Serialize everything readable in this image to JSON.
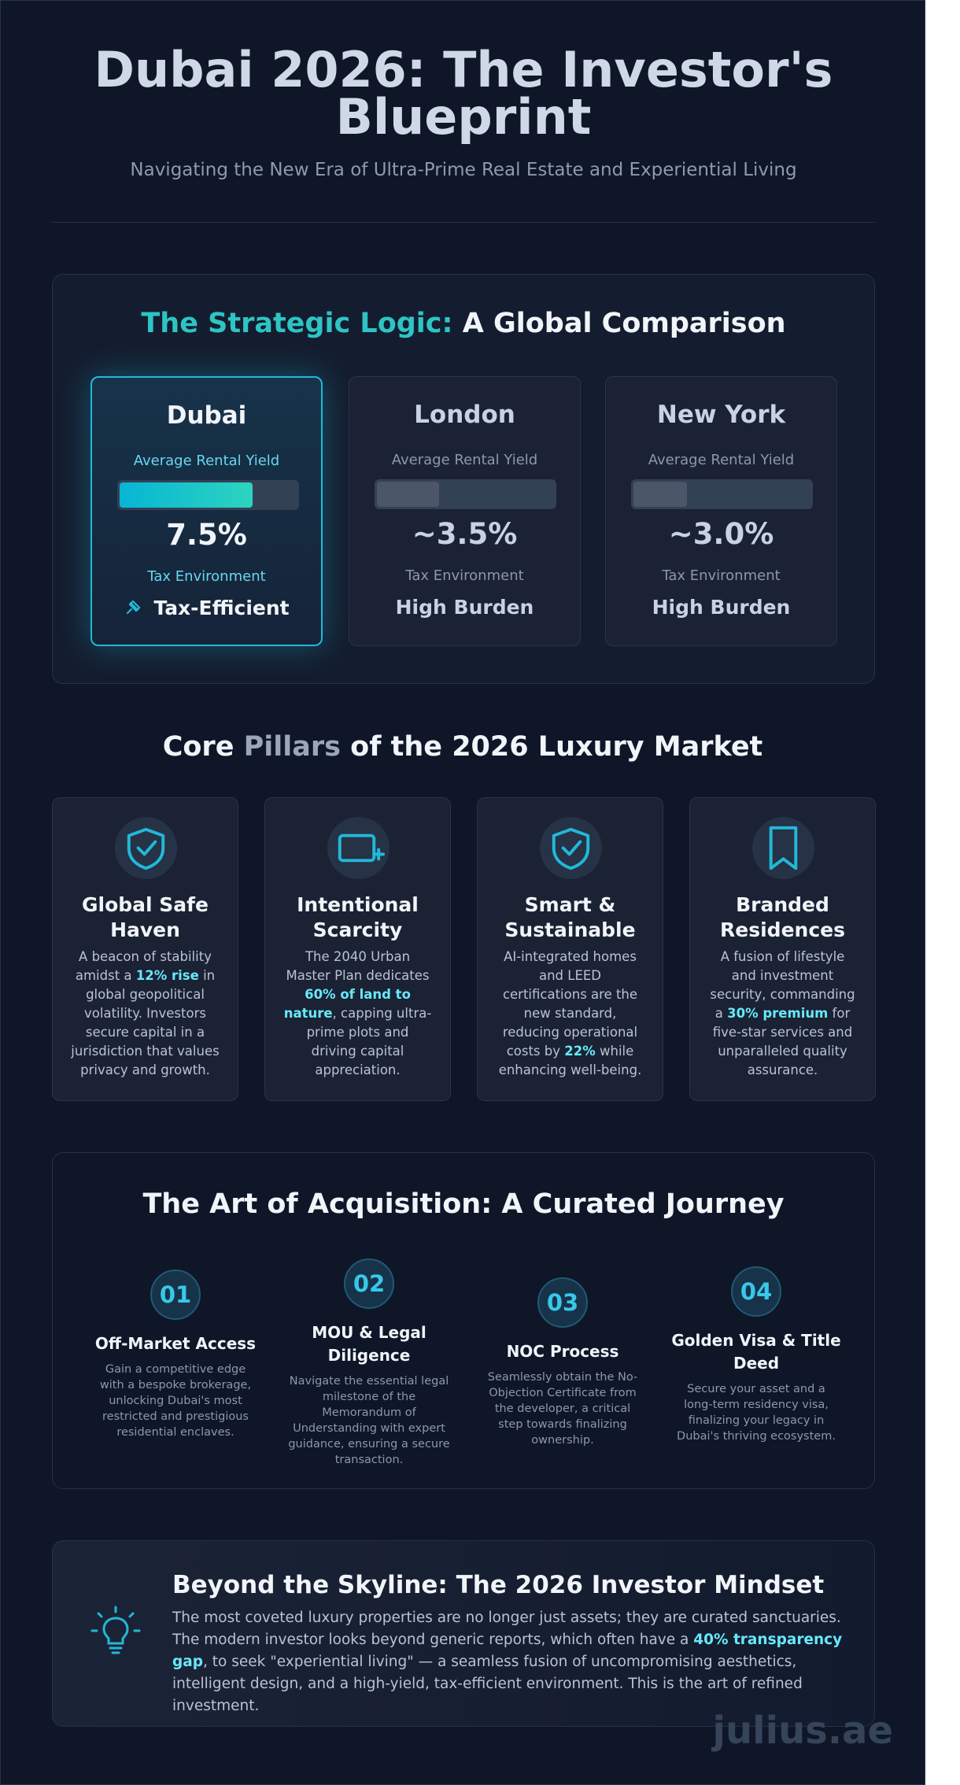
{
  "header": {
    "title": "Dubai 2026: The Investor's Blueprint",
    "subtitle": "Navigating the New Era of Ultra-Prime Real Estate and Experiential Living"
  },
  "comparison": {
    "title_highlight": "The Strategic Logic:",
    "title_rest": "A Global Comparison",
    "yield_scale_max": 10,
    "cities": [
      {
        "name": "Dubai",
        "yield_title": "Average Rental Yield",
        "yield": 7.5,
        "yield_label": "7.5%",
        "tax_title": "Tax Environment",
        "tax": "Tax-Efficient"
      },
      {
        "name": "London",
        "yield_title": "Average Rental Yield",
        "yield": 3.5,
        "yield_label": "~3.5%",
        "tax_title": "Tax Environment",
        "tax": "High Burden"
      },
      {
        "name": "New York",
        "yield_title": "Average Rental Yield",
        "yield": 3.0,
        "yield_label": "~3.0%",
        "tax_title": "Tax Environment",
        "tax": "High Burden"
      }
    ]
  },
  "pillars": {
    "title_before": "Core",
    "title_highlight": "Pillars",
    "title_after": "of the 2026 Luxury Market",
    "items": [
      {
        "title": "Global Safe Haven",
        "desc": {
          "before": "A beacon of stability amidst a ",
          "highlight": "12% rise",
          "after": " in global geopolitical volatility. Investors secure capital in a jurisdiction that values privacy and growth."
        }
      },
      {
        "title": "Intentional Scarcity",
        "desc": {
          "before": "The 2040 Urban Master Plan dedicates ",
          "highlight": "60% of land to nature",
          "after": ", capping ultra-prime plots and driving capital appreciation."
        }
      },
      {
        "title": "Smart & Sustainable",
        "desc": {
          "before": "AI-integrated homes and LEED certifications are the new standard, reducing operational costs by ",
          "highlight": "22%",
          "after": " while enhancing well-being."
        }
      },
      {
        "title": "Branded Residences",
        "desc": {
          "before": "A fusion of lifestyle and investment security, commanding a ",
          "highlight": "30% premium",
          "after": " for five-star services and unparalleled quality assurance."
        }
      }
    ]
  },
  "journey": {
    "title": "The Art of Acquisition: A Curated Journey",
    "steps": [
      {
        "number": "01",
        "title": "Off-Market Access",
        "desc": "Gain a competitive edge with a bespoke brokerage, unlocking Dubai's most restricted and prestigious residential enclaves."
      },
      {
        "number": "02",
        "title": "MOU & Legal Diligence",
        "desc": "Navigate the essential legal milestone of the Memorandum of Understanding with expert guidance, ensuring a secure transaction."
      },
      {
        "number": "03",
        "title": "NOC Process",
        "desc": "Seamlessly obtain the No-Objection Certificate from the developer, a critical step towards finalizing ownership."
      },
      {
        "number": "04",
        "title": "Golden Visa & Title Deed",
        "desc": "Secure your asset and a long-term residency visa, finalizing your legacy in Dubai's thriving ecosystem."
      }
    ]
  },
  "mindset": {
    "title": "Beyond the Skyline: The 2026 Investor Mindset",
    "text": {
      "before": "The most coveted luxury properties are no longer just assets; they are curated sanctuaries. The modern investor looks beyond generic reports, which often have a ",
      "highlight": "40% transparency gap",
      "after": ", to seek \"experiential living\" — a seamless fusion of uncompromising aesthetics, intelligent design, and a high-yield, tax-efficient environment. This is the art of refined investment."
    }
  },
  "watermark": "julius.ae"
}
